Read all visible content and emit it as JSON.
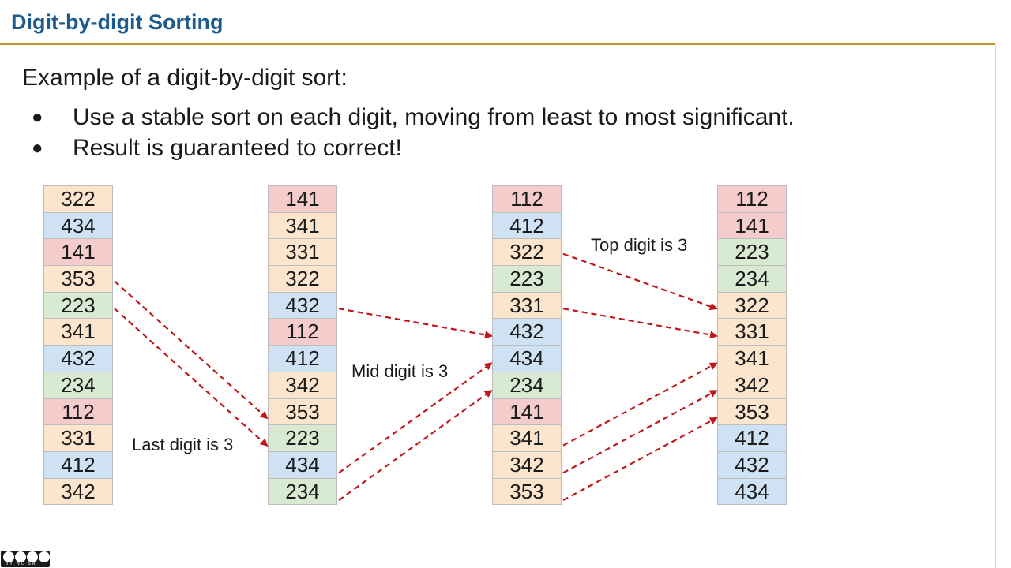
{
  "slide": {
    "title": "Digit-by-digit Sorting",
    "intro": "Example of a digit-by-digit sort:",
    "bullets": [
      "Use a stable sort on each digit, moving from least to most significant.",
      "Result is guaranteed to correct!"
    ],
    "bullet_symbol": "●"
  },
  "colors": {
    "1": "#f4cccc",
    "2": "#d9ead3",
    "3": "#fce5cd",
    "4": "#cfe2f3",
    "arrow": "#c0161a",
    "title": "#1f5a8c",
    "rule": "#c49a2c"
  },
  "columns": [
    {
      "values": [
        "322",
        "434",
        "141",
        "353",
        "223",
        "341",
        "432",
        "234",
        "112",
        "331",
        "412",
        "342"
      ]
    },
    {
      "values": [
        "141",
        "341",
        "331",
        "322",
        "432",
        "112",
        "412",
        "342",
        "353",
        "223",
        "434",
        "234"
      ]
    },
    {
      "values": [
        "112",
        "412",
        "322",
        "223",
        "331",
        "432",
        "434",
        "234",
        "141",
        "341",
        "342",
        "353"
      ]
    },
    {
      "values": [
        "112",
        "141",
        "223",
        "234",
        "322",
        "331",
        "341",
        "342",
        "353",
        "412",
        "432",
        "434"
      ]
    }
  ],
  "notes": {
    "last": "Last digit is 3",
    "mid": "Mid digit is 3",
    "top": "Top digit is 3"
  },
  "arrows": [
    {
      "from_col": 0,
      "from_value": "353",
      "to_col": 1,
      "to_value": "353"
    },
    {
      "from_col": 0,
      "from_value": "223",
      "to_col": 1,
      "to_value": "223"
    },
    {
      "from_col": 1,
      "from_value": "432",
      "to_col": 2,
      "to_value": "432"
    },
    {
      "from_col": 1,
      "from_value": "434",
      "to_col": 2,
      "to_value": "434"
    },
    {
      "from_col": 1,
      "from_value": "234",
      "to_col": 2,
      "to_value": "234"
    },
    {
      "from_col": 2,
      "from_value": "322",
      "to_col": 3,
      "to_value": "322"
    },
    {
      "from_col": 2,
      "from_value": "331",
      "to_col": 3,
      "to_value": "331"
    },
    {
      "from_col": 2,
      "from_value": "341",
      "to_col": 3,
      "to_value": "341"
    },
    {
      "from_col": 2,
      "from_value": "342",
      "to_col": 3,
      "to_value": "342"
    },
    {
      "from_col": 2,
      "from_value": "353",
      "to_col": 3,
      "to_value": "353"
    }
  ],
  "license": {
    "icon": "creative-commons-by-nc-sa-icon",
    "text": "BY NC SA"
  }
}
